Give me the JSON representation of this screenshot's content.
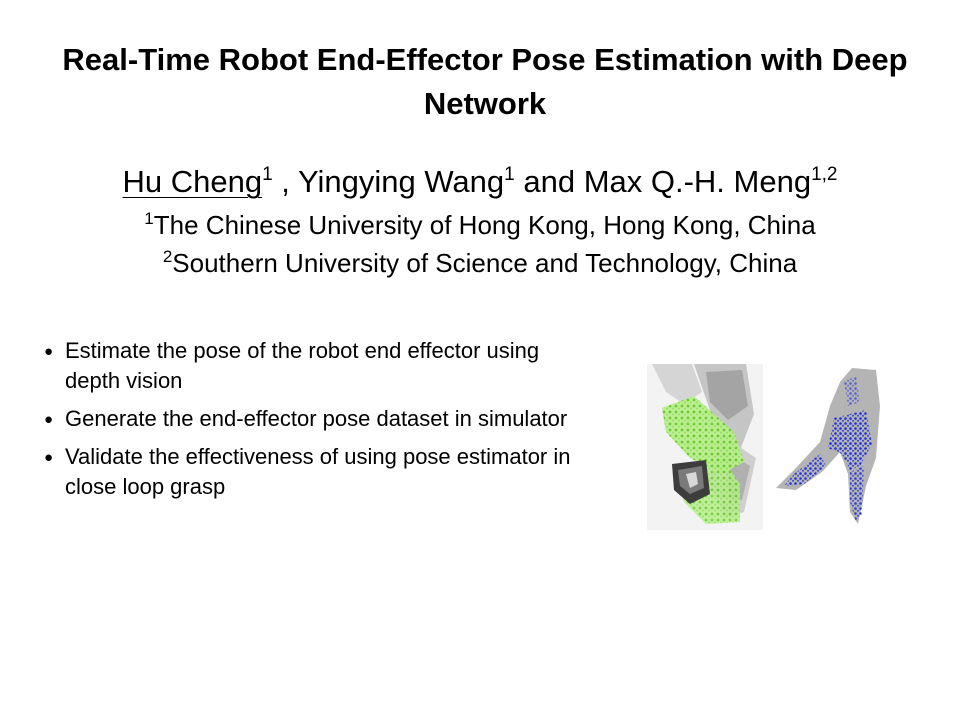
{
  "title": "Real-Time Robot End-Effector Pose Estimation with Deep Network",
  "authors": [
    {
      "name": "Hu Cheng",
      "sup": "1",
      "underlined": true
    },
    {
      "name": "Yingying Wang",
      "sup": "1"
    },
    {
      "name": "Max Q.-H. Meng",
      "sup": "1,2"
    }
  ],
  "author_separators": [
    " , ",
    " and "
  ],
  "affiliations": [
    {
      "sup": "1",
      "text": "The Chinese University of Hong Kong, Hong Kong, China"
    },
    {
      "sup": "2",
      "text": "Southern University of Science and Technology, China"
    }
  ],
  "bullets": [
    "Estimate the pose of the robot end effector using depth vision",
    "Generate the end-effector pose dataset in simulator",
    "Validate the effectiveness of using pose estimator in close loop grasp"
  ],
  "bullet_glyph": "●",
  "colors": {
    "green_points": "#7fdc3c",
    "blue_points": "#1c2cd6",
    "gray_model": "#b4b4b4"
  }
}
